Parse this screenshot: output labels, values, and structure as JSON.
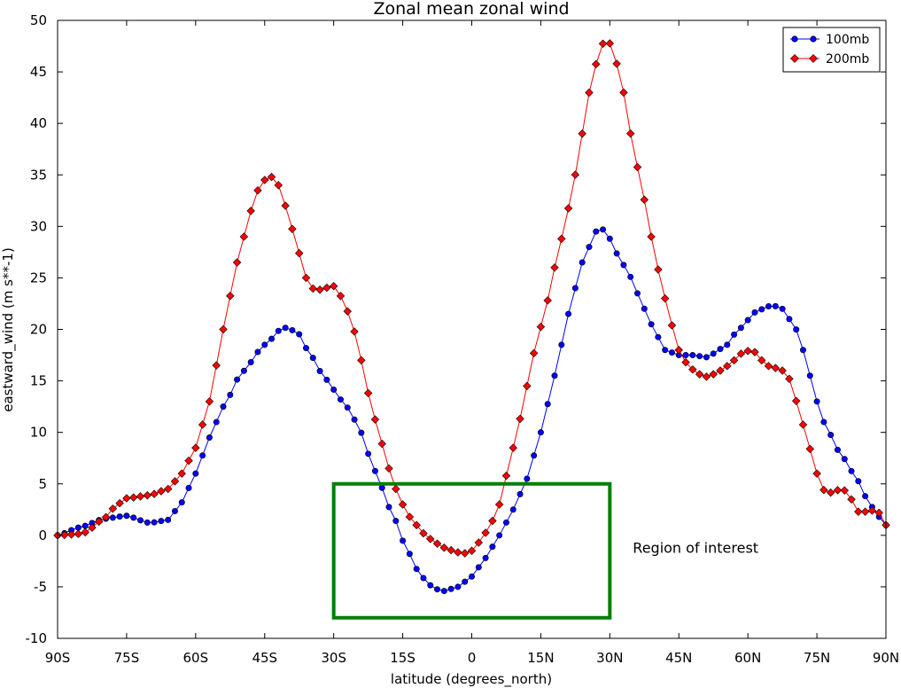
{
  "chart_data": {
    "type": "line",
    "title": "Zonal mean zonal wind",
    "xlabel": "latitude (degrees_north)",
    "ylabel": "eastward_wind (m s**-1)",
    "xlim": [
      -90,
      90
    ],
    "ylim": [
      -10,
      50
    ],
    "x_ticks": [
      -90,
      -75,
      -60,
      -45,
      -30,
      -15,
      0,
      15,
      30,
      45,
      60,
      75,
      90
    ],
    "x_tick_labels": [
      "90S",
      "75S",
      "60S",
      "45S",
      "30S",
      "15S",
      "0",
      "15N",
      "30N",
      "45N",
      "60N",
      "75N",
      "90N"
    ],
    "y_ticks": [
      -10,
      -5,
      0,
      5,
      10,
      15,
      20,
      25,
      30,
      35,
      40,
      45,
      50
    ],
    "y_tick_labels": [
      "-10",
      "-5",
      "0",
      "5",
      "10",
      "15",
      "20",
      "25",
      "30",
      "35",
      "40",
      "45",
      "50"
    ],
    "grid": false,
    "legend": {
      "position": "top-right"
    },
    "series": [
      {
        "name": "100mb",
        "color": "#0000ff",
        "marker": "circle",
        "points": [
          [
            -90,
            0
          ],
          [
            -85,
            0.8
          ],
          [
            -80,
            1.6
          ],
          [
            -75,
            1.9
          ],
          [
            -70,
            1.2
          ],
          [
            -66,
            1.5
          ],
          [
            -63,
            3.2
          ],
          [
            -60,
            6
          ],
          [
            -57,
            9.5
          ],
          [
            -54,
            12.5
          ],
          [
            -50,
            15.8
          ],
          [
            -45,
            18.5
          ],
          [
            -41,
            20.2
          ],
          [
            -38,
            19.8
          ],
          [
            -35,
            17.5
          ],
          [
            -32,
            15.3
          ],
          [
            -28,
            13
          ],
          [
            -25,
            11
          ],
          [
            -22,
            7.5
          ],
          [
            -20,
            5
          ],
          [
            -17,
            1.8
          ],
          [
            -14,
            -1.5
          ],
          [
            -11,
            -4
          ],
          [
            -8,
            -5.2
          ],
          [
            -6,
            -5.4
          ],
          [
            -3,
            -5
          ],
          [
            0,
            -4
          ],
          [
            3,
            -2.2
          ],
          [
            6,
            0
          ],
          [
            9,
            2.5
          ],
          [
            12,
            5.5
          ],
          [
            15,
            10
          ],
          [
            18,
            15.5
          ],
          [
            21,
            21.5
          ],
          [
            24,
            26.5
          ],
          [
            27,
            29.5
          ],
          [
            28.5,
            29.7
          ],
          [
            30,
            28.8
          ],
          [
            32,
            27
          ],
          [
            34,
            25.5
          ],
          [
            36,
            23.5
          ],
          [
            39,
            20.5
          ],
          [
            42,
            18
          ],
          [
            45,
            17.5
          ],
          [
            48,
            17.5
          ],
          [
            51,
            17.3
          ],
          [
            55,
            18.3
          ],
          [
            58,
            20
          ],
          [
            62,
            21.8
          ],
          [
            65,
            22.3
          ],
          [
            67,
            22.2
          ],
          [
            70,
            20.5
          ],
          [
            72,
            18
          ],
          [
            75,
            13
          ],
          [
            77,
            10.5
          ],
          [
            80,
            8
          ],
          [
            83,
            6
          ],
          [
            86,
            3.5
          ],
          [
            88,
            2
          ],
          [
            90,
            1
          ]
        ]
      },
      {
        "name": "200mb",
        "color": "#ff0000",
        "marker": "diamond",
        "points": [
          [
            -90,
            0
          ],
          [
            -86,
            0.1
          ],
          [
            -84,
            0.3
          ],
          [
            -80,
            1.6
          ],
          [
            -77,
            3
          ],
          [
            -75,
            3.6
          ],
          [
            -70,
            3.9
          ],
          [
            -66,
            4.5
          ],
          [
            -63,
            6
          ],
          [
            -60,
            8.5
          ],
          [
            -57,
            13
          ],
          [
            -54,
            20
          ],
          [
            -51,
            26.5
          ],
          [
            -48,
            31.5
          ],
          [
            -46,
            34
          ],
          [
            -44,
            35
          ],
          [
            -42,
            34
          ],
          [
            -40,
            31.5
          ],
          [
            -38,
            28
          ],
          [
            -36,
            25
          ],
          [
            -34,
            23.7
          ],
          [
            -32,
            24
          ],
          [
            -30,
            24.2
          ],
          [
            -28,
            23
          ],
          [
            -26,
            20.5
          ],
          [
            -24,
            17
          ],
          [
            -22,
            13
          ],
          [
            -20,
            9.5
          ],
          [
            -18,
            6.5
          ],
          [
            -16,
            4
          ],
          [
            -14,
            2
          ],
          [
            -12,
            1
          ],
          [
            -10,
            0
          ],
          [
            -8,
            -0.7
          ],
          [
            -6,
            -1.2
          ],
          [
            -4,
            -1.5
          ],
          [
            -2,
            -1.8
          ],
          [
            0,
            -1.5
          ],
          [
            2,
            -0.5
          ],
          [
            4,
            1
          ],
          [
            6,
            3
          ],
          [
            8,
            6.5
          ],
          [
            10,
            10.5
          ],
          [
            12,
            14.5
          ],
          [
            14,
            18.5
          ],
          [
            16,
            22
          ],
          [
            18,
            26
          ],
          [
            20,
            29.5
          ],
          [
            22,
            34
          ],
          [
            24,
            39
          ],
          [
            26,
            44
          ],
          [
            28,
            47.5
          ],
          [
            29.5,
            48.3
          ],
          [
            31,
            46.5
          ],
          [
            33,
            43
          ],
          [
            35,
            38
          ],
          [
            37,
            33.5
          ],
          [
            39,
            29
          ],
          [
            41,
            25
          ],
          [
            43,
            21
          ],
          [
            45,
            18
          ],
          [
            47,
            16.5
          ],
          [
            49,
            15.7
          ],
          [
            51,
            15.4
          ],
          [
            53,
            15.7
          ],
          [
            55,
            16.3
          ],
          [
            57,
            17
          ],
          [
            59,
            17.8
          ],
          [
            61,
            18
          ],
          [
            63,
            17
          ],
          [
            65,
            16.3
          ],
          [
            67,
            16.2
          ],
          [
            69,
            15.2
          ],
          [
            71,
            12.5
          ],
          [
            73,
            9
          ],
          [
            75,
            6
          ],
          [
            77,
            4
          ],
          [
            79,
            4.3
          ],
          [
            80.5,
            4.6
          ],
          [
            82,
            3.8
          ],
          [
            84,
            2.3
          ],
          [
            86,
            2.3
          ],
          [
            88,
            2.5
          ],
          [
            90,
            1
          ]
        ]
      }
    ],
    "annotations": [
      {
        "type": "rectangle",
        "color": "#008000",
        "x0": -30,
        "x1": 30,
        "y0": -8,
        "y1": 5
      },
      {
        "type": "text",
        "text": "Region of interest",
        "x": 35,
        "y": -1.7
      }
    ]
  }
}
